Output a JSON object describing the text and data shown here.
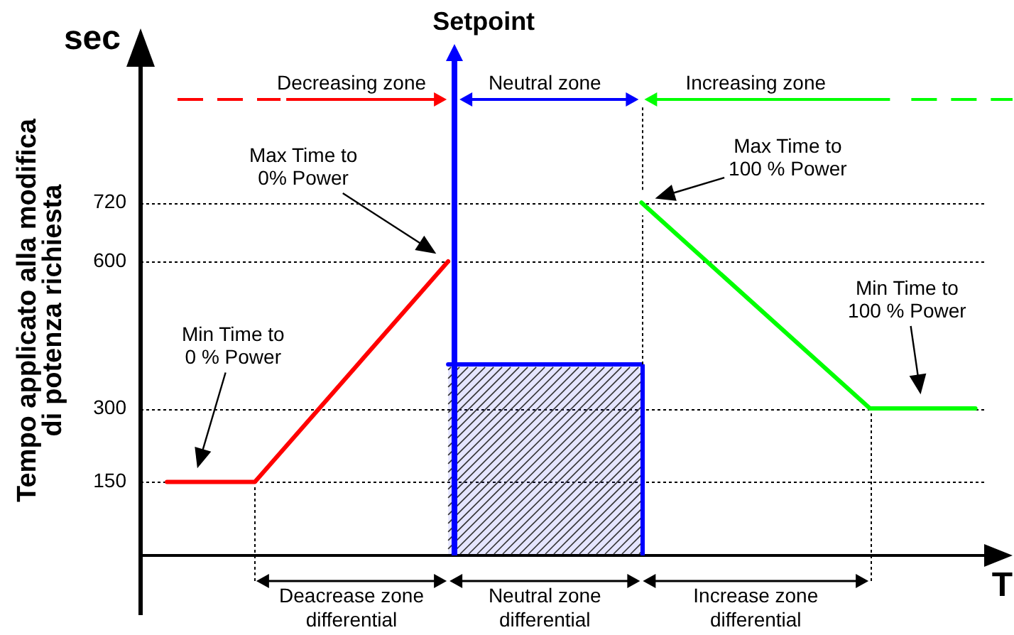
{
  "chart_data": {
    "type": "line",
    "ylabel": "Tempo applicato alla modifica di potenza richiesta",
    "xlabel": "T",
    "categories": [
      null,
      null,
      null,
      null,
      null,
      null,
      null,
      null,
      null,
      null,
      null,
      null,
      null,
      null,
      null,
      null,
      null,
      null,
      null,
      null,
      null,
      null,
      null,
      null,
      null,
      null,
      null,
      null,
      null,
      null,
      null,
      null,
      null,
      null,
      null,
      null,
      null,
      null,
      null,
      null,
      null,
      null,
      null,
      null,
      null,
      null,
      null,
      null
    ],
    "series": [
      {
        "type": "line",
        "color": "#ff0000",
        "values": [
          null,
          150,
          null,
          null,
          null,
          null,
          150,
          null,
          null,
          null,
          null,
          null,
          null,
          null,
          null,
          null,
          null,
          600,
          null,
          null,
          null,
          null,
          null,
          null,
          null,
          null,
          null,
          null,
          null,
          null,
          null,
          null,
          null,
          null,
          null,
          null,
          null,
          null,
          null,
          null,
          null,
          null,
          null,
          null,
          null,
          null,
          null,
          null
        ]
      },
      {
        "type": "area",
        "color": "#0000ff",
        "values": [
          null,
          null,
          null,
          null,
          null,
          null,
          null,
          null,
          null,
          null,
          null,
          null,
          null,
          null,
          null,
          null,
          null,
          390,
          null,
          null,
          null,
          null,
          null,
          null,
          null,
          null,
          null,
          null,
          390,
          null,
          null,
          null,
          null,
          null,
          null,
          null,
          null,
          null,
          null,
          null,
          null,
          null,
          null,
          null,
          null,
          null,
          null,
          null
        ]
      },
      {
        "type": "line",
        "color": "#00ff00",
        "values": [
          null,
          null,
          null,
          null,
          null,
          null,
          null,
          null,
          null,
          null,
          null,
          null,
          null,
          null,
          null,
          null,
          null,
          null,
          null,
          null,
          null,
          null,
          null,
          null,
          null,
          null,
          null,
          null,
          720,
          null,
          null,
          null,
          null,
          null,
          null,
          null,
          null,
          null,
          null,
          null,
          null,
          300,
          null,
          null,
          null,
          null,
          null,
          300
        ]
      }
    ],
    "ylim": [
      0,
      1000
    ],
    "yticks": [
      150,
      300,
      600,
      720
    ],
    "tick_labels": "y",
    "grid": "y",
    "marker": "none",
    "annotations": [
      "sec",
      "Setpoint",
      "Decreasing zone",
      "Neutral zone",
      "Increasing zone",
      "Min Time to 0 % Power",
      "Max Time to 0% Power",
      "Max Time to 100 % Power",
      "Min Time to 100 % Power",
      "Deacrease zone differential",
      "Neutral zone differential",
      "Increase zone differential"
    ]
  }
}
